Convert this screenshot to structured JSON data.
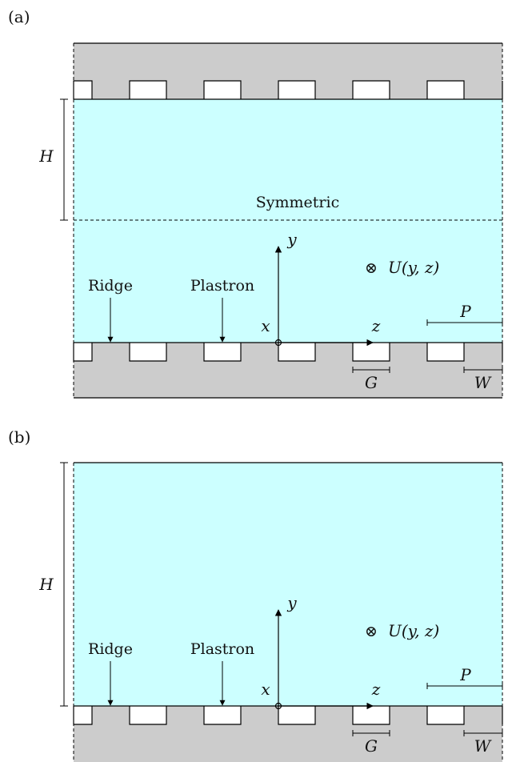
{
  "colors": {
    "fluid": "#ccffff",
    "solid": "#cccccc",
    "plastron": "#ffffff",
    "line": "#000000"
  },
  "panels": [
    {
      "label": "(a)",
      "height_label": "H",
      "symmetric_label": "Symmetric",
      "ridge_label": "Ridge",
      "plastron_label": "Plastron",
      "x_label": "x",
      "y_label": "y",
      "z_label": "z",
      "velocity_symbol": "⊗",
      "velocity_label": "U(y, z)",
      "period_label": "P",
      "gap_label": "G",
      "width_label": "W"
    },
    {
      "label": "(b)",
      "height_label": "H",
      "ridge_label": "Ridge",
      "plastron_label": "Plastron",
      "x_label": "x",
      "y_label": "y",
      "z_label": "z",
      "velocity_symbol": "⊗",
      "velocity_label": "U(y, z)",
      "period_label": "P",
      "gap_label": "G",
      "width_label": "W"
    }
  ]
}
